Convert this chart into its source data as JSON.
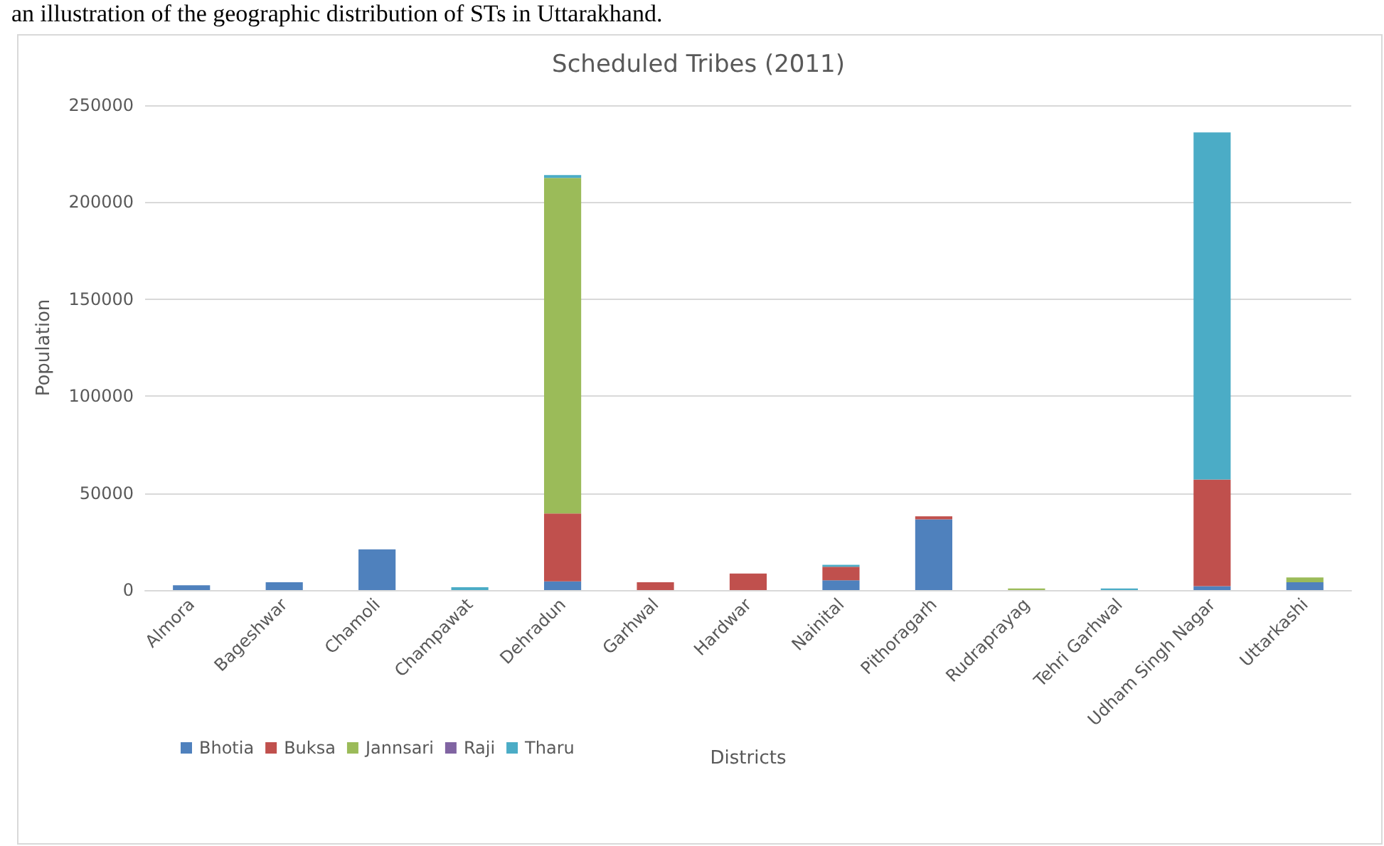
{
  "chart_data": {
    "type": "bar",
    "title": "Scheduled Tribes (2011)",
    "xlabel": "Districts",
    "ylabel": "Population",
    "annotations": [
      "an illustration of the geographic distribution of STs in Uttarakhand."
    ],
    "categories": [
      "Almora",
      "Bageshwar",
      "Chamoli",
      "Champawat",
      "Dehradun",
      "Garhwal",
      "Hardwar",
      "Nainital",
      "Pithoragarh",
      "Rudraprayag",
      "Tehri Garhwal",
      "Udham Singh Nagar",
      "Uttarkashi"
    ],
    "stacked": true,
    "series": [
      {
        "name": "Bhotia",
        "color": "#4f81bd",
        "values": [
          2500,
          4000,
          21000,
          0,
          4500,
          0,
          0,
          5000,
          36500,
          0,
          0,
          2000,
          4000
        ]
      },
      {
        "name": "Buksa",
        "color": "#c0504d",
        "values": [
          0,
          0,
          0,
          0,
          35000,
          4000,
          8500,
          7000,
          1500,
          0,
          0,
          55000,
          0
        ]
      },
      {
        "name": "Jannsari",
        "color": "#9bbb59",
        "values": [
          0,
          0,
          0,
          0,
          173000,
          0,
          0,
          0,
          0,
          800,
          0,
          0,
          2500
        ]
      },
      {
        "name": "Raji",
        "color": "#8064a2",
        "values": [
          0,
          0,
          0,
          0,
          0,
          0,
          0,
          0,
          0,
          0,
          0,
          0,
          0
        ]
      },
      {
        "name": "Tharu",
        "color": "#4bacc6",
        "values": [
          0,
          0,
          0,
          1500,
          1500,
          0,
          0,
          1000,
          0,
          0,
          800,
          179000,
          0
        ]
      }
    ],
    "ylim": [
      0,
      250000
    ],
    "yticks": [
      0,
      50000,
      100000,
      150000,
      200000,
      250000
    ],
    "grid": "y",
    "legend": "bottom left"
  }
}
